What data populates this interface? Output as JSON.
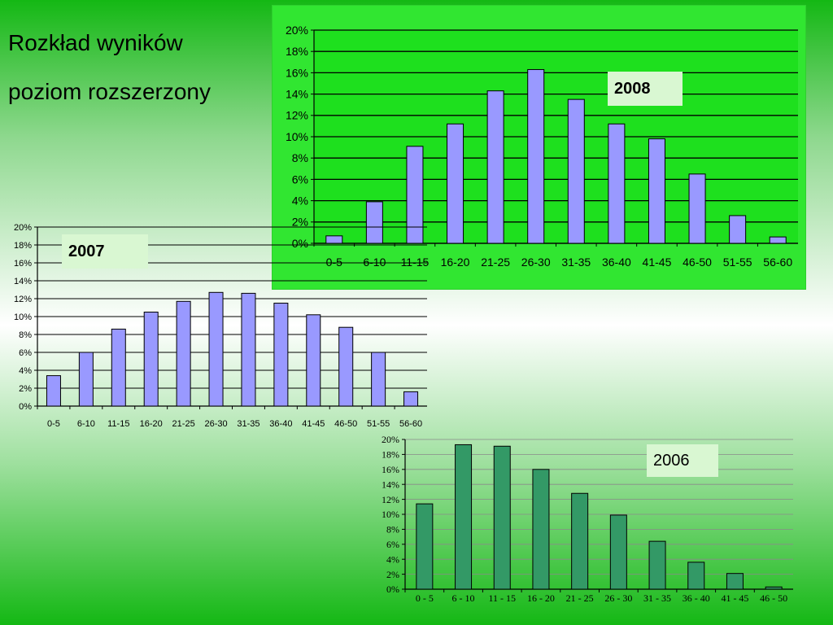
{
  "slide": {
    "title_line_1": "Rozkład wyników",
    "title_line_2": "poziom rozszerzony"
  },
  "chart_data": [
    {
      "id": "2008",
      "type": "bar",
      "label": "2008",
      "categories": [
        "0-5",
        "6-10",
        "11-15",
        "16-20",
        "21-25",
        "26-30",
        "31-35",
        "36-40",
        "41-45",
        "46-50",
        "51-55",
        "56-60"
      ],
      "values": [
        0.7,
        3.9,
        9.1,
        11.2,
        14.3,
        16.3,
        13.5,
        11.2,
        9.8,
        6.5,
        2.6,
        0.6
      ],
      "ylim": [
        0,
        20
      ],
      "yticks": [
        "0%",
        "2%",
        "4%",
        "6%",
        "8%",
        "10%",
        "12%",
        "14%",
        "16%",
        "18%",
        "20%"
      ],
      "bar_color": "#9999ff",
      "plot_bg": "#1ee01e",
      "grid": true
    },
    {
      "id": "2007",
      "type": "bar",
      "label": "2007",
      "categories": [
        "0-5",
        "6-10",
        "11-15",
        "16-20",
        "21-25",
        "26-30",
        "31-35",
        "36-40",
        "41-45",
        "46-50",
        "51-55",
        "56-60"
      ],
      "values": [
        3.4,
        6.0,
        8.6,
        10.5,
        11.7,
        12.7,
        12.6,
        11.5,
        10.2,
        8.8,
        6.0,
        1.6
      ],
      "ylim": [
        0,
        20
      ],
      "yticks": [
        "0%",
        "2%",
        "4%",
        "6%",
        "8%",
        "10%",
        "12%",
        "14%",
        "16%",
        "18%",
        "20%"
      ],
      "bar_color": "#9999ff",
      "plot_bg": "none",
      "grid": true
    },
    {
      "id": "2006",
      "type": "bar",
      "label": "2006",
      "categories": [
        "0 - 5",
        "6 - 10",
        "11 - 15",
        "16 - 20",
        "21 - 25",
        "26 - 30",
        "31 - 35",
        "36 - 40",
        "41 - 45",
        "46 - 50"
      ],
      "values": [
        11.4,
        19.3,
        19.1,
        16.0,
        12.8,
        9.9,
        6.4,
        3.6,
        2.1,
        0.3
      ],
      "ylim": [
        0,
        20
      ],
      "yticks": [
        "0%",
        "2%",
        "4%",
        "6%",
        "8%",
        "10%",
        "12%",
        "14%",
        "16%",
        "18%",
        "20%"
      ],
      "bar_color": "#339966",
      "plot_bg": "none",
      "grid": true
    }
  ]
}
